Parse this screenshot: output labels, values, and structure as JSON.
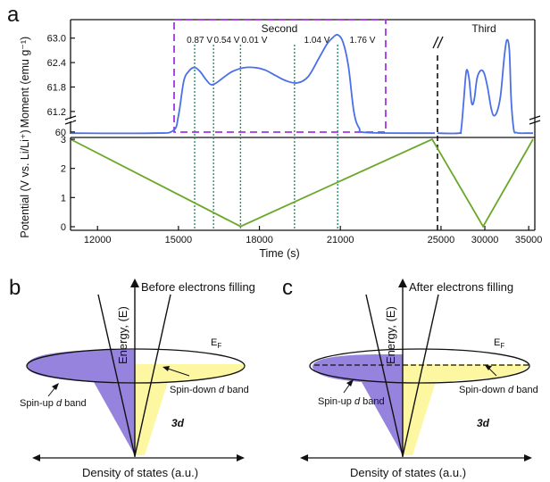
{
  "colors": {
    "moment": "#4a6fe8",
    "potential": "#6aa82a",
    "marker": "#2c8c6a",
    "box": "#a335e0",
    "spin_up": "#9683dd",
    "spin_down": "#fdf7a2"
  },
  "panel_a": {
    "letter": "a",
    "region_second": "Second",
    "region_third": "Third",
    "marker_labels": [
      "0.87 V",
      "0.54 V",
      "0.01 V",
      "1.04 V",
      "1.76 V"
    ]
  },
  "panel_b": {
    "letter": "b",
    "title": "Before electrons filling",
    "energy_label": "Energy, (E)",
    "fermi_label": "E",
    "fermi_sub": "F",
    "spin_up_label": "Spin-up ",
    "spin_up_d": "d",
    "spin_up_tail": " band",
    "spin_down_label": "Spin-down ",
    "spin_down_d": "d",
    "spin_down_tail": " band",
    "orbital_label": "3d",
    "x_label": "Density of states (a.u.)"
  },
  "panel_c": {
    "letter": "c",
    "title": "After electrons filling",
    "energy_label": "Energy, (E)",
    "fermi_label": "E",
    "fermi_sub": "F",
    "spin_up_label": "Spin-up ",
    "spin_up_d": "d",
    "spin_up_tail": " band",
    "spin_down_label": "Spin-down ",
    "spin_down_d": "d",
    "spin_down_tail": " band",
    "orbital_label": "3d",
    "x_label": "Density of states (a.u.)"
  },
  "chart_data": [
    {
      "type": "line",
      "title": "",
      "xlabel": "",
      "ylabel": "Moment (emu g⁻¹)",
      "y_ticks": [
        "61.2",
        "61.8",
        "62.4",
        "63.0"
      ],
      "y_ticks_below_break": [
        "60"
      ],
      "ylim": [
        59.7,
        63.3
      ],
      "y_axis_break": true,
      "x_axis_break": true,
      "series": [
        {
          "x": [
            11000,
            14000,
            14800,
            15000,
            15200,
            15400,
            15600,
            15800,
            16000,
            16200,
            16400,
            16700,
            17000,
            17400,
            17800,
            18200,
            18600,
            19000,
            19400,
            19800,
            20200,
            20500,
            20700,
            20900,
            21100,
            21300,
            21500,
            21700,
            22000,
            24500
          ],
          "y": [
            59.9,
            59.9,
            60.1,
            61.1,
            61.95,
            62.2,
            62.28,
            62.18,
            62.0,
            61.86,
            61.9,
            62.05,
            62.18,
            62.27,
            62.28,
            62.22,
            62.08,
            61.95,
            61.9,
            62.05,
            62.5,
            62.85,
            63.0,
            63.08,
            62.9,
            62.3,
            61.2,
            60.3,
            59.95,
            59.9
          ]
        },
        {
          "x": [
            24600,
            27000,
            27300,
            27600,
            27900,
            28200,
            28500,
            28800,
            29100,
            29500,
            29900,
            30300,
            30700,
            31000,
            31400,
            31800,
            32200,
            32500,
            32800,
            33000,
            33300,
            33600,
            34000,
            34500,
            35500
          ],
          "y": [
            59.9,
            59.9,
            60.2,
            61.5,
            62.2,
            62.0,
            61.4,
            61.5,
            62.0,
            62.2,
            62.15,
            61.8,
            61.3,
            61.1,
            61.2,
            61.6,
            62.5,
            62.95,
            62.7,
            61.5,
            60.2,
            59.95,
            59.9,
            59.9,
            59.9
          ]
        }
      ],
      "annotations": [
        "Second",
        "Third",
        "0.87 V",
        "0.54 V",
        "0.01 V",
        "1.04 V",
        "1.76 V"
      ]
    },
    {
      "type": "line",
      "title": "",
      "xlabel": "Time (s)",
      "ylabel": "Potential (V vs. Li/Li⁺)",
      "x_ticks": [
        "12000",
        "15000",
        "18000",
        "21000",
        "25000",
        "30000",
        "35000"
      ],
      "y_ticks": [
        "0",
        "1",
        "2",
        "3"
      ],
      "ylim": [
        -0.1,
        3.0
      ],
      "x_axis_break": true,
      "series": [
        {
          "x": [
            11000,
            17300,
            24400,
            29800,
            35500
          ],
          "y": [
            3.0,
            0.01,
            3.0,
            0.01,
            3.0
          ]
        }
      ],
      "marker_times": [
        15600,
        16300,
        17300,
        19300,
        20900
      ]
    }
  ]
}
